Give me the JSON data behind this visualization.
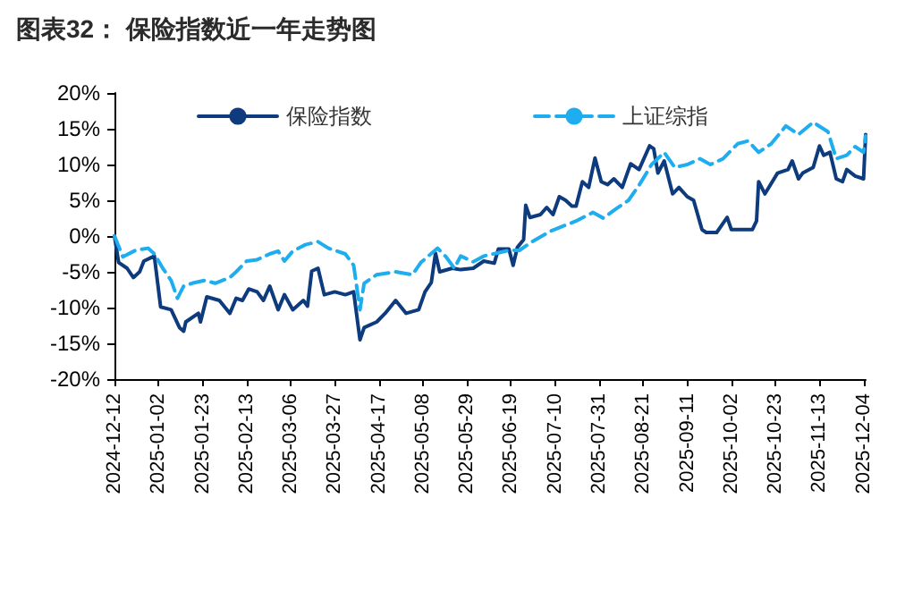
{
  "chart_data": {
    "type": "line",
    "title": "图表32： 保险指数近一年走势图",
    "xlim": [
      "2024-12-12",
      "2025-12-05"
    ],
    "xticks": [
      "2024-12-12",
      "2025-01-02",
      "2025-01-23",
      "2025-02-13",
      "2025-03-06",
      "2025-03-27",
      "2025-04-17",
      "2025-05-08",
      "2025-05-29",
      "2025-06-19",
      "2025-07-10",
      "2025-07-31",
      "2025-08-21",
      "2025-09-11",
      "2025-10-02",
      "2025-10-23",
      "2025-11-13",
      "2025-12-04"
    ],
    "ylim": [
      -20,
      20
    ],
    "yticks": [
      {
        "value": -20,
        "label": "-20%"
      },
      {
        "value": -15,
        "label": "-15%"
      },
      {
        "value": -10,
        "label": "-10%"
      },
      {
        "value": -5,
        "label": "-5%"
      },
      {
        "value": 0,
        "label": "0%"
      },
      {
        "value": 5,
        "label": "5%"
      },
      {
        "value": 10,
        "label": "10%"
      },
      {
        "value": 15,
        "label": "15%"
      },
      {
        "value": 20,
        "label": "20%"
      }
    ],
    "grid": false,
    "legend": "top",
    "marker": "none",
    "series": [
      {
        "name": "保险指数",
        "color": "#0d3b7d",
        "line_style": "solid",
        "x": [
          "2024-12-12",
          "2024-12-14",
          "2024-12-18",
          "2024-12-21",
          "2024-12-24",
          "2024-12-26",
          "2024-12-31",
          "2025-01-03",
          "2025-01-08",
          "2025-01-12",
          "2025-01-14",
          "2025-01-15",
          "2025-01-21",
          "2025-01-22",
          "2025-01-25",
          "2025-01-31",
          "2025-02-05",
          "2025-02-08",
          "2025-02-11",
          "2025-02-14",
          "2025-02-18",
          "2025-02-21",
          "2025-02-24",
          "2025-02-28",
          "2025-03-03",
          "2025-03-07",
          "2025-03-12",
          "2025-03-14",
          "2025-03-16",
          "2025-03-19",
          "2025-03-22",
          "2025-03-27",
          "2025-04-01",
          "2025-04-05",
          "2025-04-08",
          "2025-04-10",
          "2025-04-16",
          "2025-04-20",
          "2025-04-25",
          "2025-04-30",
          "2025-05-06",
          "2025-05-09",
          "2025-05-12",
          "2025-05-14",
          "2025-05-16",
          "2025-05-22",
          "2025-05-26",
          "2025-06-01",
          "2025-06-06",
          "2025-06-11",
          "2025-06-13",
          "2025-06-18",
          "2025-06-20",
          "2025-06-22",
          "2025-06-25",
          "2025-06-26",
          "2025-06-28",
          "2025-07-03",
          "2025-07-06",
          "2025-07-09",
          "2025-07-12",
          "2025-07-15",
          "2025-07-18",
          "2025-07-20",
          "2025-07-23",
          "2025-07-26",
          "2025-07-29",
          "2025-08-01",
          "2025-08-04",
          "2025-08-07",
          "2025-08-11",
          "2025-08-15",
          "2025-08-19",
          "2025-08-24",
          "2025-08-26",
          "2025-08-28",
          "2025-08-31",
          "2025-09-04",
          "2025-09-07",
          "2025-09-11",
          "2025-09-14",
          "2025-09-18",
          "2025-09-20",
          "2025-09-25",
          "2025-09-30",
          "2025-10-02",
          "2025-10-12",
          "2025-10-14",
          "2025-10-15",
          "2025-10-18",
          "2025-10-24",
          "2025-10-29",
          "2025-10-31",
          "2025-11-03",
          "2025-11-05",
          "2025-11-10",
          "2025-11-13",
          "2025-11-15",
          "2025-11-18",
          "2025-11-21",
          "2025-11-24",
          "2025-11-26",
          "2025-11-30",
          "2025-12-04",
          "2025-12-05"
        ],
        "values": [
          0,
          -3.7,
          -4.5,
          -5.8,
          -5,
          -3.5,
          -2.8,
          -9.9,
          -10.3,
          -12.8,
          -13.3,
          -12,
          -10.8,
          -12,
          -8.5,
          -9,
          -10.8,
          -8.7,
          -9,
          -7.4,
          -7.8,
          -9,
          -7,
          -10.3,
          -8.2,
          -10.3,
          -9,
          -9.8,
          -4.9,
          -4.5,
          -8.2,
          -7.8,
          -8.2,
          -7.8,
          -14.5,
          -12.8,
          -12,
          -10.8,
          -9,
          -10.8,
          -10.3,
          -7.8,
          -6.5,
          -2.4,
          -5,
          -4.5,
          -4.7,
          -4.5,
          -3.5,
          -3.8,
          -1.8,
          -1.8,
          -4.1,
          -1.6,
          -0.5,
          4.3,
          2.6,
          3,
          4,
          3,
          5.5,
          5,
          4.2,
          4.2,
          7.6,
          6.8,
          10.9,
          7.6,
          7.2,
          8,
          6.8,
          10.1,
          9.3,
          12.6,
          12.2,
          8.8,
          10.5,
          5.9,
          6.8,
          5.5,
          5,
          0.9,
          0.5,
          0.5,
          2.6,
          0.9,
          0.9,
          2.1,
          7.6,
          5.9,
          8.8,
          9.3,
          10.5,
          8,
          8.8,
          9.6,
          12.6,
          11.3,
          11.7,
          8,
          7.6,
          9.3,
          8.4,
          8,
          14.2
        ]
      },
      {
        "name": "上证综指",
        "color": "#1eaef0",
        "line_style": "dashed",
        "x": [
          "2024-12-12",
          "2024-12-16",
          "2024-12-22",
          "2024-12-28",
          "2024-12-31",
          "2025-01-04",
          "2025-01-08",
          "2025-01-11",
          "2025-01-14",
          "2025-01-18",
          "2025-01-24",
          "2025-01-29",
          "2025-02-05",
          "2025-02-08",
          "2025-02-13",
          "2025-02-18",
          "2025-02-24",
          "2025-02-28",
          "2025-03-03",
          "2025-03-07",
          "2025-03-13",
          "2025-03-19",
          "2025-03-24",
          "2025-04-01",
          "2025-04-05",
          "2025-04-08",
          "2025-04-10",
          "2025-04-16",
          "2025-04-25",
          "2025-05-03",
          "2025-05-07",
          "2025-05-15",
          "2025-05-19",
          "2025-05-23",
          "2025-05-26",
          "2025-06-01",
          "2025-06-06",
          "2025-06-12",
          "2025-06-18",
          "2025-06-23",
          "2025-06-29",
          "2025-07-08",
          "2025-07-13",
          "2025-07-20",
          "2025-07-28",
          "2025-08-02",
          "2025-08-08",
          "2025-08-14",
          "2025-08-19",
          "2025-08-25",
          "2025-08-31",
          "2025-09-05",
          "2025-09-11",
          "2025-09-17",
          "2025-09-22",
          "2025-09-28",
          "2025-10-05",
          "2025-10-10",
          "2025-10-15",
          "2025-10-21",
          "2025-10-28",
          "2025-11-03",
          "2025-11-10",
          "2025-11-17",
          "2025-11-21",
          "2025-11-26",
          "2025-11-30",
          "2025-12-04",
          "2025-12-05"
        ],
        "values": [
          0,
          -2.9,
          -2,
          -1.7,
          -2.5,
          -4.5,
          -6.2,
          -8.7,
          -7,
          -6.6,
          -6.2,
          -6.6,
          -5.8,
          -5,
          -3.5,
          -3.3,
          -2.5,
          -2.1,
          -3.5,
          -2.1,
          -1.2,
          -0.8,
          -1.7,
          -2.5,
          -4.1,
          -10.3,
          -6.6,
          -5.4,
          -5,
          -5.4,
          -3.7,
          -1.7,
          -2.9,
          -4.5,
          -2.8,
          -3.6,
          -2.8,
          -2.4,
          -2,
          -2,
          -0.8,
          0.7,
          1.3,
          2.1,
          3.3,
          2.5,
          3.8,
          5,
          7.1,
          10,
          11.7,
          9.6,
          10,
          10.8,
          10,
          10.8,
          12.9,
          13.3,
          11.7,
          12.9,
          15.4,
          14.2,
          15.9,
          14.6,
          10.8,
          11.3,
          12.5,
          11.7,
          14
        ]
      }
    ]
  }
}
